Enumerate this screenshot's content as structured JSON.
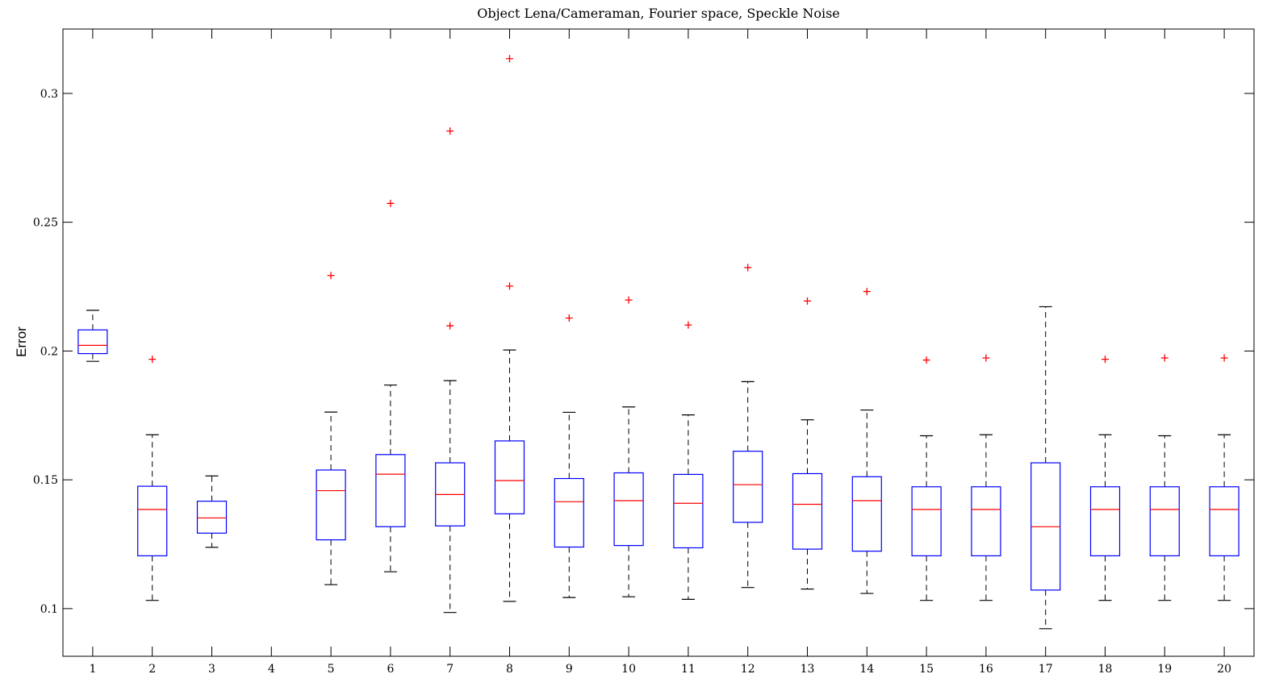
{
  "chart_data": {
    "type": "boxplot",
    "title": "Object Lena/Cameraman, Fourier space, Speckle Noise",
    "xlabel": "",
    "ylabel": "Error",
    "xlim": [
      0.5,
      20.5
    ],
    "ylim": [
      0.0815,
      0.325
    ],
    "y_ticks": [
      0.1,
      0.15,
      0.2,
      0.25,
      0.3
    ],
    "y_tick_labels": [
      "0.1",
      "0.15",
      "0.2",
      "0.25",
      "0.3"
    ],
    "categories": [
      "1",
      "2",
      "3",
      "4",
      "5",
      "6",
      "7",
      "8",
      "9",
      "10",
      "11",
      "12",
      "13",
      "14",
      "15",
      "16",
      "17",
      "18",
      "19",
      "20"
    ],
    "grid": false,
    "colors": {
      "box": "#0000ff",
      "median": "#ff0000",
      "whisker": "#000000",
      "outlier": "#ff0000",
      "axes": "#000000"
    },
    "boxes": [
      {
        "x": "1",
        "whisker_low": 0.196,
        "q1": 0.199,
        "median": 0.2022,
        "q3": 0.2082,
        "whisker_high": 0.2158,
        "outliers": []
      },
      {
        "x": "2",
        "whisker_low": 0.1032,
        "q1": 0.1205,
        "median": 0.1385,
        "q3": 0.1475,
        "whisker_high": 0.1675,
        "outliers": [
          0.1968
        ]
      },
      {
        "x": "3",
        "whisker_low": 0.1238,
        "q1": 0.1293,
        "median": 0.1352,
        "q3": 0.1417,
        "whisker_high": 0.1515,
        "outliers": []
      },
      {
        "x": "4",
        "empty": true
      },
      {
        "x": "5",
        "whisker_low": 0.1093,
        "q1": 0.1267,
        "median": 0.1458,
        "q3": 0.1538,
        "whisker_high": 0.1763,
        "outliers": [
          0.2293
        ]
      },
      {
        "x": "6",
        "whisker_low": 0.1143,
        "q1": 0.1318,
        "median": 0.1522,
        "q3": 0.1598,
        "whisker_high": 0.1868,
        "outliers": [
          0.2573
        ]
      },
      {
        "x": "7",
        "whisker_low": 0.0985,
        "q1": 0.1321,
        "median": 0.1443,
        "q3": 0.1566,
        "whisker_high": 0.1885,
        "outliers": [
          0.2098,
          0.2854
        ]
      },
      {
        "x": "8",
        "whisker_low": 0.1028,
        "q1": 0.1368,
        "median": 0.1497,
        "q3": 0.1651,
        "whisker_high": 0.2004,
        "outliers": [
          0.2252,
          0.3135
        ]
      },
      {
        "x": "9",
        "whisker_low": 0.1043,
        "q1": 0.1239,
        "median": 0.1415,
        "q3": 0.1505,
        "whisker_high": 0.1762,
        "outliers": [
          0.2128
        ]
      },
      {
        "x": "10",
        "whisker_low": 0.1046,
        "q1": 0.1245,
        "median": 0.1419,
        "q3": 0.1527,
        "whisker_high": 0.1783,
        "outliers": [
          0.2198
        ]
      },
      {
        "x": "11",
        "whisker_low": 0.1036,
        "q1": 0.1236,
        "median": 0.1409,
        "q3": 0.1521,
        "whisker_high": 0.1752,
        "outliers": [
          0.2101
        ]
      },
      {
        "x": "12",
        "whisker_low": 0.1082,
        "q1": 0.1335,
        "median": 0.1481,
        "q3": 0.1611,
        "whisker_high": 0.1881,
        "outliers": [
          0.2324
        ]
      },
      {
        "x": "13",
        "whisker_low": 0.1076,
        "q1": 0.1231,
        "median": 0.1405,
        "q3": 0.1524,
        "whisker_high": 0.1733,
        "outliers": [
          0.2194
        ]
      },
      {
        "x": "14",
        "whisker_low": 0.1059,
        "q1": 0.1223,
        "median": 0.1419,
        "q3": 0.1512,
        "whisker_high": 0.1771,
        "outliers": [
          0.2231
        ]
      },
      {
        "x": "15",
        "whisker_low": 0.1032,
        "q1": 0.1205,
        "median": 0.1385,
        "q3": 0.1473,
        "whisker_high": 0.1671,
        "outliers": [
          0.1965
        ]
      },
      {
        "x": "16",
        "whisker_low": 0.1032,
        "q1": 0.1205,
        "median": 0.1385,
        "q3": 0.1473,
        "whisker_high": 0.1675,
        "outliers": [
          0.1973
        ]
      },
      {
        "x": "17",
        "whisker_low": 0.0922,
        "q1": 0.1072,
        "median": 0.1318,
        "q3": 0.1566,
        "whisker_high": 0.2172,
        "outliers": []
      },
      {
        "x": "18",
        "whisker_low": 0.1032,
        "q1": 0.1205,
        "median": 0.1385,
        "q3": 0.1473,
        "whisker_high": 0.1675,
        "outliers": [
          0.1968
        ]
      },
      {
        "x": "19",
        "whisker_low": 0.1032,
        "q1": 0.1205,
        "median": 0.1385,
        "q3": 0.1473,
        "whisker_high": 0.1671,
        "outliers": [
          0.1973
        ]
      },
      {
        "x": "20",
        "whisker_low": 0.1032,
        "q1": 0.1205,
        "median": 0.1385,
        "q3": 0.1473,
        "whisker_high": 0.1675,
        "outliers": [
          0.1973
        ]
      }
    ]
  }
}
